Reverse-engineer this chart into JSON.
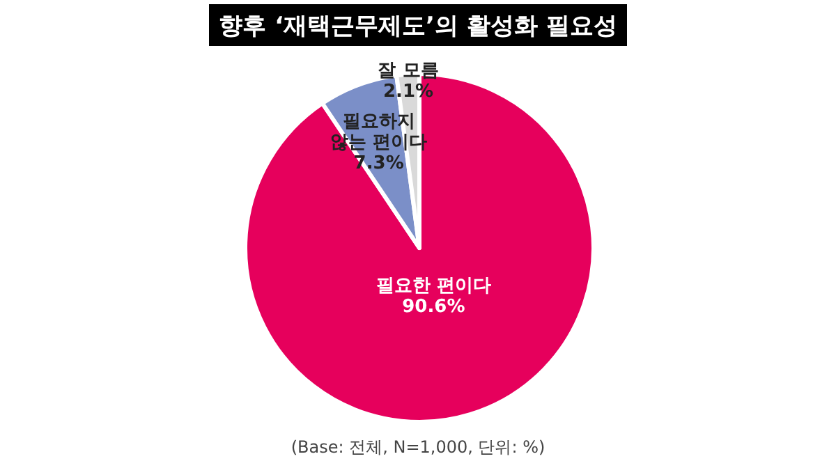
{
  "chart_data": {
    "type": "pie",
    "title": "향후 ‘재택근무제도’의 활성화 필요성",
    "categories": [
      "필요한 편이다",
      "필요하지 않는 편이다",
      "잘 모름"
    ],
    "values": [
      90.6,
      7.3,
      2.1
    ],
    "value_labels": [
      "90.6%",
      "7.3%",
      "2.1%"
    ],
    "colors": [
      "#e6005c",
      "#7b8fc8",
      "#d9d9d9"
    ],
    "annotations": [
      "(Base: 전체, N=1,000, 단위: %)"
    ]
  }
}
